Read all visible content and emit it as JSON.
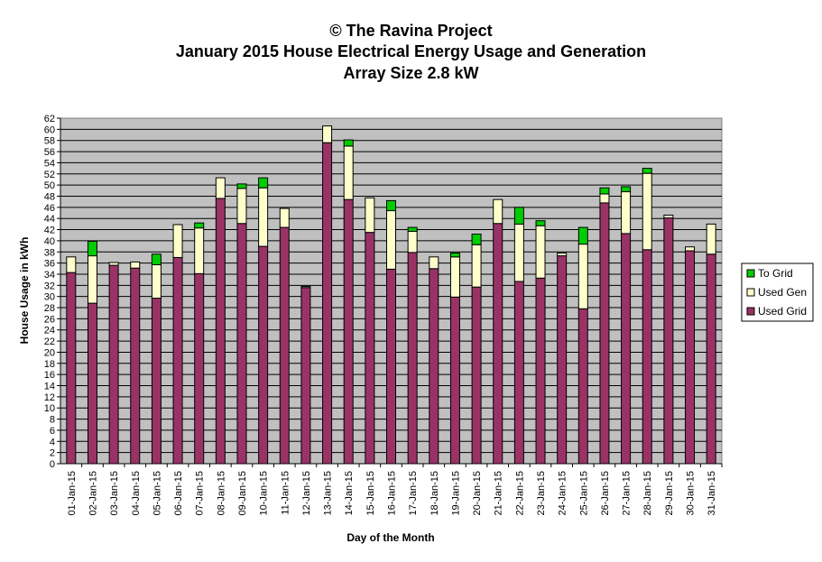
{
  "chart_data": {
    "type": "bar",
    "stacked": true,
    "title_lines": [
      "© The Ravina Project",
      "January 2015 House Electrical Energy Usage and Generation",
      "Array Size 2.8 kW"
    ],
    "xlabel": "Day of the Month",
    "ylabel": "House Usage in kWh",
    "ylim": [
      0,
      62
    ],
    "ytick_step": 2,
    "grid": true,
    "legend_position": "right",
    "categories": [
      "01-Jan-15",
      "02-Jan-15",
      "03-Jan-15",
      "04-Jan-15",
      "05-Jan-15",
      "06-Jan-15",
      "07-Jan-15",
      "08-Jan-15",
      "09-Jan-15",
      "10-Jan-15",
      "11-Jan-15",
      "12-Jan-15",
      "13-Jan-15",
      "14-Jan-15",
      "15-Jan-15",
      "16-Jan-15",
      "17-Jan-15",
      "18-Jan-15",
      "19-Jan-15",
      "20-Jan-15",
      "21-Jan-15",
      "22-Jan-15",
      "23-Jan-15",
      "24-Jan-15",
      "25-Jan-15",
      "26-Jan-15",
      "27-Jan-15",
      "28-Jan-15",
      "29-Jan-15",
      "30-Jan-15",
      "31-Jan-15"
    ],
    "series": [
      {
        "name": "Used Grid",
        "color": "#993366",
        "values": [
          34.3,
          28.8,
          35.6,
          35.1,
          29.7,
          37.0,
          34.1,
          47.6,
          43.1,
          39.0,
          42.4,
          31.6,
          57.6,
          47.4,
          41.5,
          34.9,
          37.9,
          35.0,
          29.9,
          31.7,
          43.1,
          32.7,
          33.3,
          37.3,
          27.8,
          46.8,
          41.3,
          38.4,
          44.1,
          38.2,
          37.6
        ]
      },
      {
        "name": "Used Gen",
        "color": "#FFFFCC",
        "values": [
          2.8,
          8.5,
          0.5,
          1.1,
          6.0,
          5.9,
          8.2,
          3.7,
          6.3,
          10.5,
          3.4,
          0.2,
          3.0,
          9.6,
          6.2,
          10.5,
          3.8,
          2.1,
          7.2,
          7.6,
          4.3,
          10.3,
          9.4,
          0.5,
          11.6,
          1.6,
          7.5,
          13.7,
          0.5,
          0.7,
          5.4
        ]
      },
      {
        "name": "To Grid",
        "color": "#00CC00",
        "values": [
          0.0,
          2.6,
          0.0,
          0.0,
          1.9,
          0.0,
          0.9,
          0.0,
          0.8,
          1.8,
          0.0,
          0.0,
          0.0,
          1.1,
          0.0,
          1.8,
          0.7,
          0.0,
          0.7,
          1.9,
          0.0,
          3.0,
          0.9,
          0.0,
          3.0,
          1.1,
          0.9,
          0.9,
          0.0,
          0.0,
          0.0
        ]
      }
    ]
  }
}
